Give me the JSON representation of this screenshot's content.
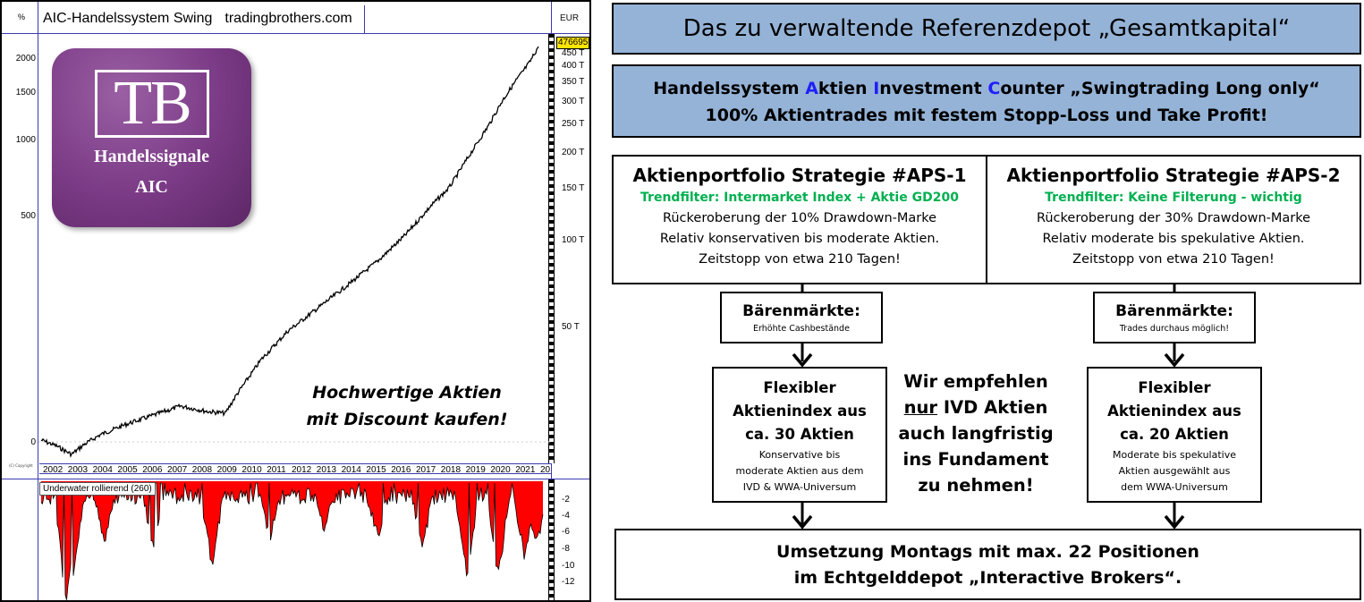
{
  "chart": {
    "title": "AIC-Handelssystem Swing",
    "source": "tradingbrothers.com",
    "left_axis_unit": "%",
    "right_axis_unit": "EUR",
    "left_ticks": [
      "2000",
      "1500",
      "1000",
      "500",
      "0"
    ],
    "right_ticks": [
      "450 T",
      "400 T",
      "350 T",
      "300 T",
      "250 T",
      "200 T",
      "150 T",
      "100 T",
      "50 T"
    ],
    "last_value": "476695",
    "years": [
      "2002",
      "2003",
      "2004",
      "2005",
      "2006",
      "2007",
      "2008",
      "2009",
      "2010",
      "2011",
      "2012",
      "2013",
      "2014",
      "2015",
      "2016",
      "2017",
      "2018",
      "2019",
      "2020",
      "2021",
      "20"
    ],
    "underwater_label": "Underwater rollierend (260)",
    "underwater_ticks": [
      "-2",
      "-4",
      "-6",
      "-8",
      "-10",
      "-12"
    ],
    "corner_tiny_text": "(C) Copyright",
    "slogan_line1": "Hochwertige Aktien",
    "slogan_line2": "mit Discount kaufen!",
    "logo": {
      "letters": "TB",
      "line1": "Handelssignale",
      "line2": "AIC",
      "color": "#7a3a85"
    },
    "line_color": "#000000",
    "drawdown_color": "#ff0000",
    "grid_color": "#3b3bb0"
  },
  "header": {
    "title": "Das zu verwaltende Referenzdepot „Gesamtkapital“"
  },
  "system": {
    "line1_prefix": "Handelssystem ",
    "a": "A",
    "a_rest": "ktien ",
    "i": "I",
    "i_rest": "nvestment ",
    "c": "C",
    "c_rest": "ounter „Swingtrading  Long only“",
    "line2": "100% Aktientrades mit festem Stopp-Loss und Take Profit!",
    "accent_color": "#1f1ffb"
  },
  "strategy1": {
    "title": "Aktienportfolio  Strategie #APS-1",
    "filter": "Trendfilter: Intermarket Index + Aktie GD200",
    "d1": "Rückeroberung der 10% Drawdown-Marke",
    "d2": "Relativ konservativen bis moderate Aktien.",
    "d3": "Zeitstopp von etwa 210 Tagen!"
  },
  "strategy2": {
    "title": "Aktienportfolio  Strategie #APS-2",
    "filter": "Trendfilter: Keine Filterung - wichtig",
    "d1": "Rückeroberung der 30% Drawdown-Marke",
    "d2": "Relativ moderate bis spekulative Aktien.",
    "d3": "Zeitstopp von etwa 210 Tagen!"
  },
  "bear1": {
    "title": "Bärenmärkte:",
    "sub": "Erhöhte Cashbestände"
  },
  "bear2": {
    "title": "Bärenmärkte:",
    "sub": "Trades durchaus möglich!"
  },
  "flex1": {
    "l1": "Flexibler",
    "l2": "Aktienindex aus",
    "l3": "ca. 30 Aktien",
    "s1": "Konservative bis",
    "s2": "moderate  Aktien aus dem",
    "s3": "IVD & WWA-Universum"
  },
  "flex2": {
    "l1": "Flexibler",
    "l2": "Aktienindex aus",
    "l3": "ca. 20 Aktien",
    "s1": "Moderate  bis spekulative",
    "s2": "Aktien ausgewählt aus",
    "s3": "dem  WWA-Universum"
  },
  "middle": {
    "l1": "Wir empfehlen",
    "l2_underlined": "nur",
    "l2_rest": " IVD Aktien",
    "l3": "auch langfristig",
    "l4": "ins Fundament",
    "l5": "zu nehmen!"
  },
  "bottom": {
    "l1": "Umsetzung Montags mit max. 22 Positionen",
    "l2": "im Echtgelddepot „Interactive Brokers“."
  },
  "colors": {
    "header_bg": "#95b3d7",
    "green": "#00b050"
  }
}
